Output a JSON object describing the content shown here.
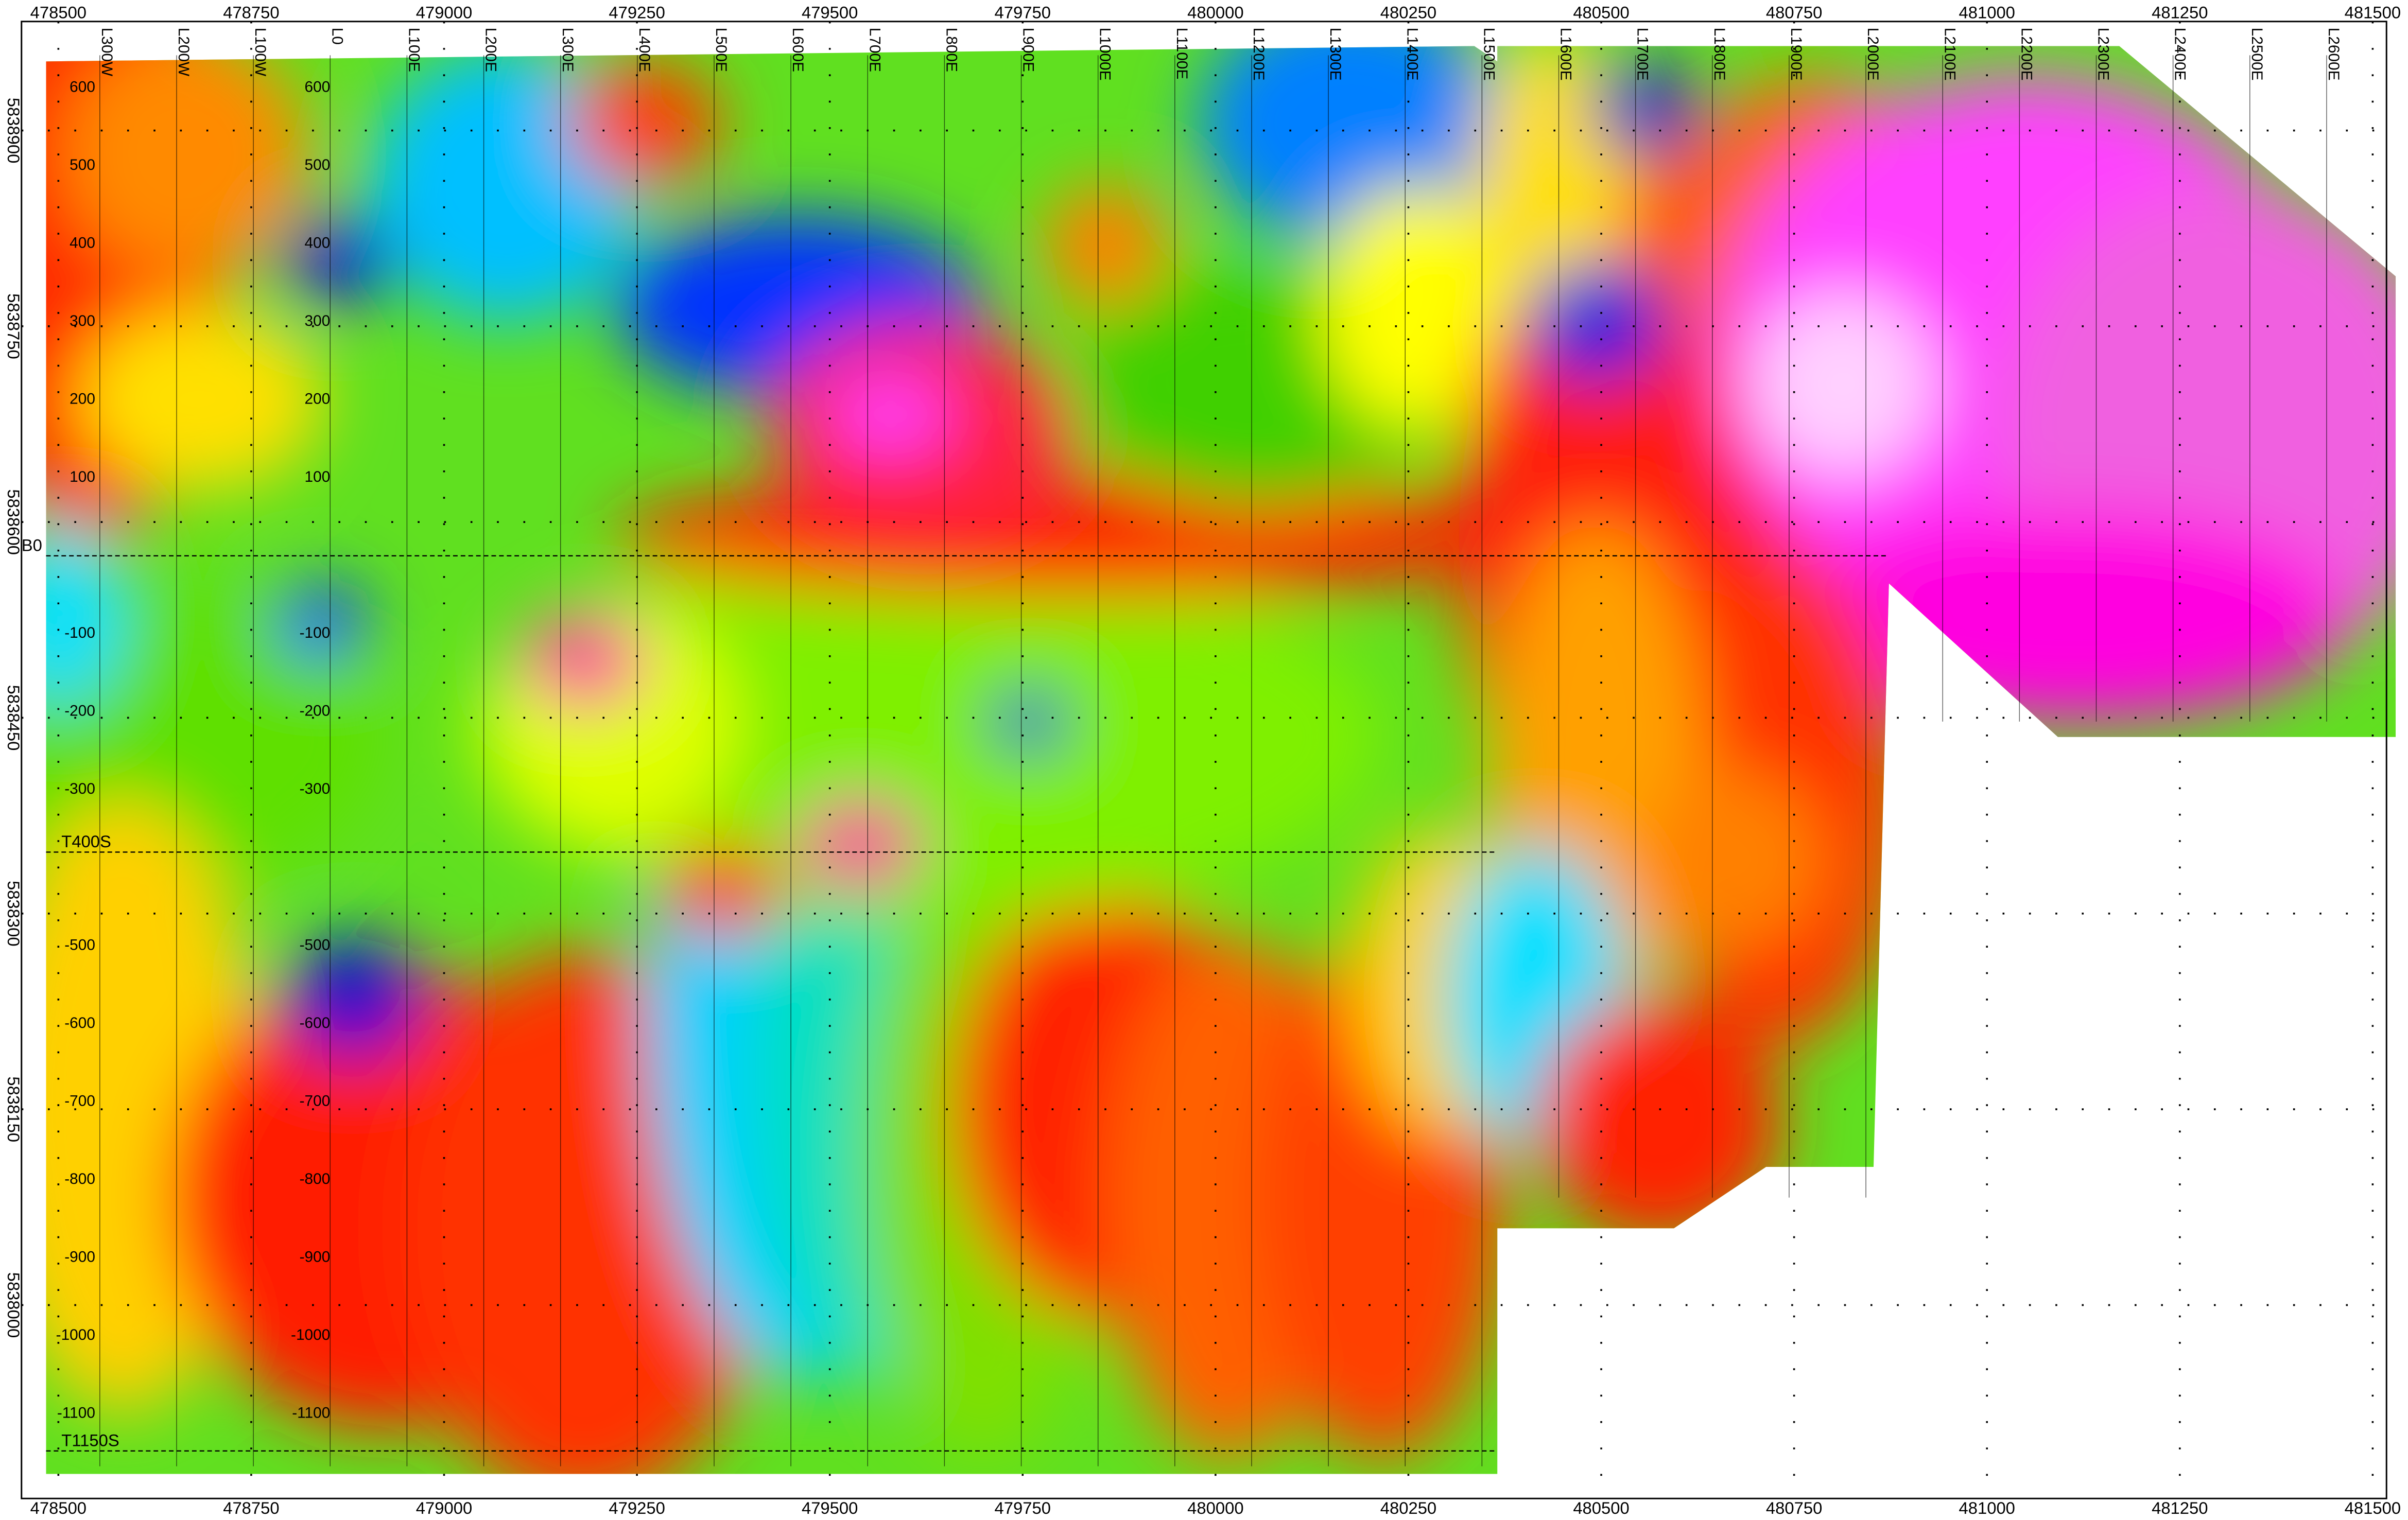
{
  "map": {
    "x_ticks": [
      478500,
      478750,
      479000,
      479250,
      479500,
      479750,
      480000,
      480250,
      480500,
      480750,
      481000,
      481250,
      481500
    ],
    "y_ticks": [
      5838900,
      5838750,
      5838600,
      5838450,
      5838300,
      5838150,
      5838000
    ],
    "survey_lines": [
      "L300W",
      "L200W",
      "L100W",
      "L0",
      "L100E",
      "L200E",
      "L300E",
      "L400E",
      "L500E",
      "L600E",
      "L700E",
      "L800E",
      "L900E",
      "L1000E",
      "L1100E",
      "L1200E",
      "L1300E",
      "L1400E",
      "L1500E",
      "L1600E",
      "L1700E",
      "L1800E",
      "L1900E",
      "L2000E",
      "L2100E",
      "L2200E",
      "L2300E",
      "L2400E",
      "L2500E",
      "L2600E"
    ],
    "traverses": [
      "B0",
      "T400S",
      "T1150S"
    ],
    "stations": [
      600,
      500,
      400,
      300,
      200,
      100,
      -100,
      -200,
      -300,
      -500,
      -600,
      -700,
      -800,
      -900,
      -1000,
      -1100
    ]
  }
}
